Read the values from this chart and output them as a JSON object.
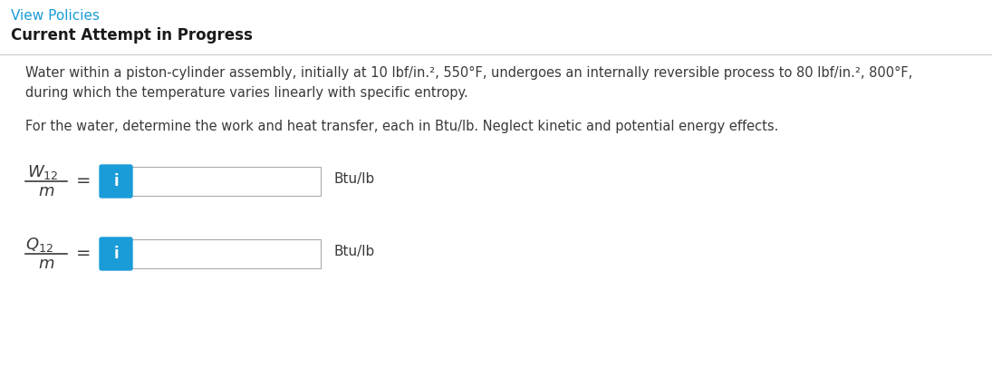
{
  "view_policies_text": "View Policies",
  "view_policies_color": "#1a9cd8",
  "current_attempt_text": "Current Attempt in Progress",
  "paragraph1_line1": "Water within a piston-cylinder assembly, initially at 10 lbf/in.², 550°F, undergoes an internally reversible process to 80 lbf/in.², 800°F,",
  "paragraph1_line2": "during which the temperature varies linearly with specific entropy.",
  "paragraph2": "For the water, determine the work and heat transfer, each in Btu/lb. Neglect kinetic and potential energy effects.",
  "unit": "Btu/lb",
  "info_icon_color": "#1a9cd8",
  "info_icon_text": "i",
  "input_box_border": "#aaaaaa",
  "bg_color": "#ffffff",
  "divider_color": "#cccccc",
  "text_color": "#3a3a3a",
  "bold_text_color": "#1a1a1a",
  "fig_width": 10.95,
  "fig_height": 4.17,
  "dpi": 100
}
